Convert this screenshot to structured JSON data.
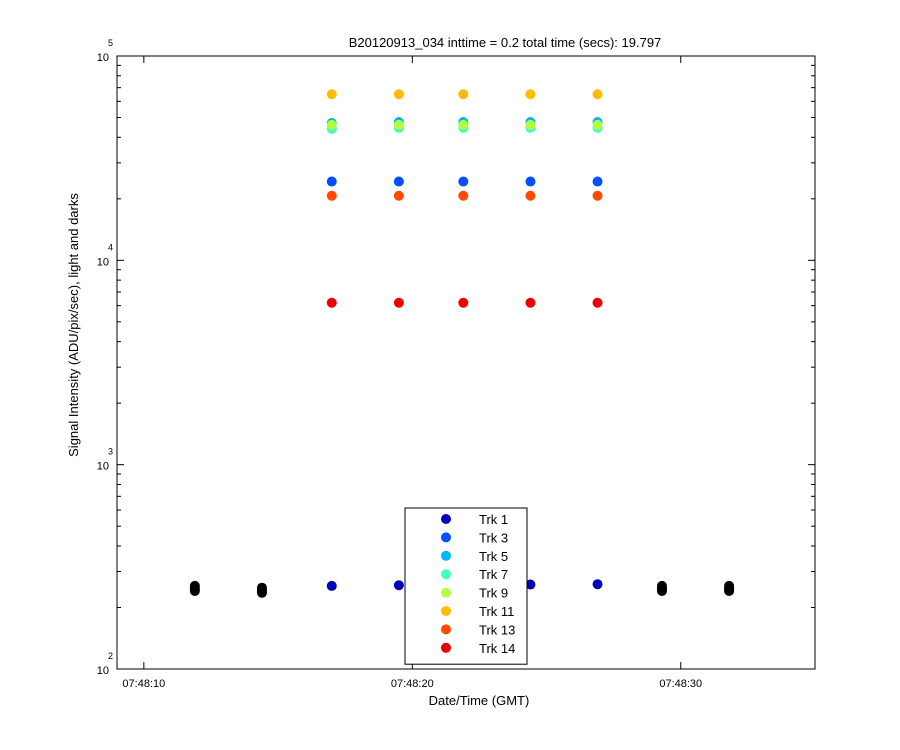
{
  "chart_data": {
    "type": "scatter",
    "title": "B20120913_034 inttime = 0.2 total time (secs): 19.797",
    "xlabel": "Date/Time (GMT)",
    "ylabel": "Signal Intensity (ADU/pix/sec), light and darks",
    "x_scale": "time",
    "y_scale": "log",
    "xlim": [
      "07:48:09.0",
      "07:48:35.0"
    ],
    "ylim": [
      100,
      100000
    ],
    "x_ticks": [
      {
        "value": "07:48:10",
        "label": "07:48:10"
      },
      {
        "value": "07:48:20",
        "label": "07:48:20"
      },
      {
        "value": "07:48:30",
        "label": "07:48:30"
      }
    ],
    "y_ticks": [
      {
        "value": 100,
        "base": "10",
        "exp": "2"
      },
      {
        "value": 1000,
        "base": "10",
        "exp": "3"
      },
      {
        "value": 10000,
        "base": "10",
        "exp": "4"
      },
      {
        "value": 100000,
        "base": "10",
        "exp": "5"
      }
    ],
    "grid": false,
    "legend_position": "bottom-center",
    "series": [
      {
        "name": "Trk 1",
        "color": "#0000bb",
        "x": [
          "07:48:17.0",
          "07:48:19.5",
          "07:48:21.9",
          "07:48:24.4",
          "07:48:26.9"
        ],
        "y": [
          255,
          257,
          258,
          259,
          260
        ]
      },
      {
        "name": "Trk 3",
        "color": "#0050ff",
        "x": [
          "07:48:17.0",
          "07:48:19.5",
          "07:48:21.9",
          "07:48:24.4",
          "07:48:26.9"
        ],
        "y": [
          24300,
          24300,
          24300,
          24300,
          24300
        ]
      },
      {
        "name": "Trk 5",
        "color": "#00b4ff",
        "x": [
          "07:48:17.0",
          "07:48:19.5",
          "07:48:21.9",
          "07:48:24.4",
          "07:48:26.9"
        ],
        "y": [
          47000,
          47500,
          47500,
          47500,
          47500
        ]
      },
      {
        "name": "Trk 7",
        "color": "#40ffc0",
        "x": [
          "07:48:17.0",
          "07:48:19.5",
          "07:48:21.9",
          "07:48:24.4",
          "07:48:26.9"
        ],
        "y": [
          44000,
          44500,
          44500,
          44500,
          44500
        ]
      },
      {
        "name": "Trk 9",
        "color": "#b0ff40",
        "x": [
          "07:48:17.0",
          "07:48:19.5",
          "07:48:21.9",
          "07:48:24.4",
          "07:48:26.9"
        ],
        "y": [
          46000,
          46000,
          46000,
          46000,
          46000
        ]
      },
      {
        "name": "Trk 11",
        "color": "#ffbb00",
        "x": [
          "07:48:17.0",
          "07:48:19.5",
          "07:48:21.9",
          "07:48:24.4",
          "07:48:26.9"
        ],
        "y": [
          65000,
          65000,
          65000,
          65000,
          65000
        ]
      },
      {
        "name": "Trk 13",
        "color": "#ff4a00",
        "x": [
          "07:48:17.0",
          "07:48:19.5",
          "07:48:21.9",
          "07:48:24.4",
          "07:48:26.9"
        ],
        "y": [
          20700,
          20700,
          20700,
          20700,
          20700
        ]
      },
      {
        "name": "Trk 14",
        "color": "#ee0000",
        "x": [
          "07:48:17.0",
          "07:48:19.5",
          "07:48:21.9",
          "07:48:24.4",
          "07:48:26.9"
        ],
        "y": [
          6200,
          6200,
          6200,
          6200,
          6200
        ]
      }
    ],
    "dark_series": {
      "color": "#000000",
      "x": [
        "07:48:11.9",
        "07:48:11.9",
        "07:48:11.9",
        "07:48:11.9",
        "07:48:14.4",
        "07:48:14.4",
        "07:48:14.4",
        "07:48:14.4",
        "07:48:29.3",
        "07:48:29.3",
        "07:48:29.3",
        "07:48:29.3",
        "07:48:31.8",
        "07:48:31.8",
        "07:48:31.8",
        "07:48:31.8"
      ],
      "y": [
        241,
        245,
        250,
        255,
        236,
        240,
        245,
        250,
        241,
        245,
        250,
        255,
        241,
        245,
        250,
        255
      ]
    }
  }
}
